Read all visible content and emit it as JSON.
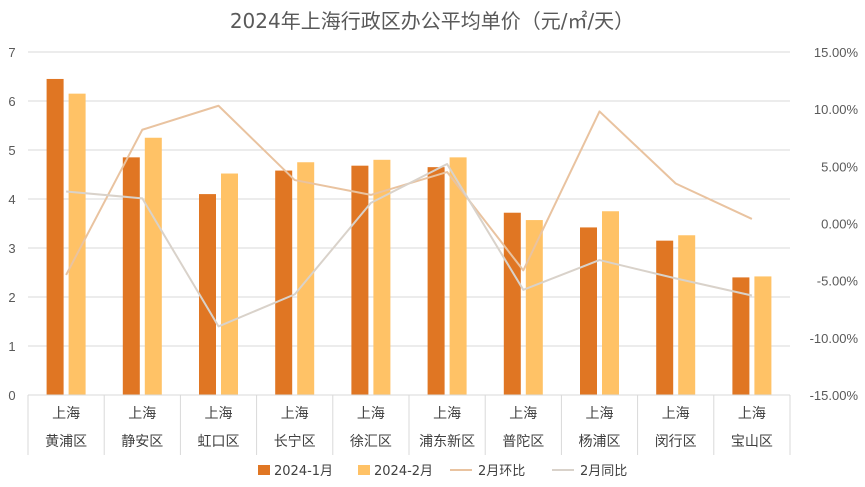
{
  "chart_data": {
    "type": "bar",
    "title": "2024年上海行政区办公平均单价（元/㎡/天）",
    "region_label": "上海",
    "categories": [
      "黄浦区",
      "静安区",
      "虹口区",
      "长宁区",
      "徐汇区",
      "浦东新区",
      "普陀区",
      "杨浦区",
      "闵行区",
      "宝山区"
    ],
    "series": [
      {
        "name": "2024-1月",
        "kind": "bar",
        "axis": "left",
        "color": "#E07623",
        "values": [
          6.45,
          4.85,
          4.1,
          4.58,
          4.68,
          4.65,
          3.72,
          3.42,
          3.15,
          2.4
        ]
      },
      {
        "name": "2024-2月",
        "kind": "bar",
        "axis": "left",
        "color": "#FFC266",
        "values": [
          6.15,
          5.25,
          4.52,
          4.75,
          4.8,
          4.85,
          3.57,
          3.75,
          3.26,
          2.42
        ]
      },
      {
        "name": "2月环比",
        "kind": "line",
        "axis": "right",
        "color": "#E9C3A0",
        "values": [
          -4.5,
          8.2,
          10.3,
          3.8,
          2.5,
          4.5,
          -4.1,
          9.8,
          3.5,
          0.4
        ]
      },
      {
        "name": "2月同比",
        "kind": "line",
        "axis": "right",
        "color": "#D9D2CA",
        "values": [
          2.8,
          2.2,
          -9.0,
          -6.2,
          1.8,
          5.2,
          -5.8,
          -3.2,
          -4.8,
          -6.3
        ]
      }
    ],
    "y_left": {
      "ylim": [
        0,
        7
      ],
      "ticks": [
        "0",
        "1",
        "2",
        "3",
        "4",
        "5",
        "6",
        "7"
      ]
    },
    "y_right": {
      "ylim": [
        -15,
        15
      ],
      "ticks": [
        "-15.00%",
        "-10.00%",
        "-5.00%",
        "0.00%",
        "5.00%",
        "10.00%",
        "15.00%"
      ]
    },
    "grid": true,
    "legend_position": "bottom"
  }
}
